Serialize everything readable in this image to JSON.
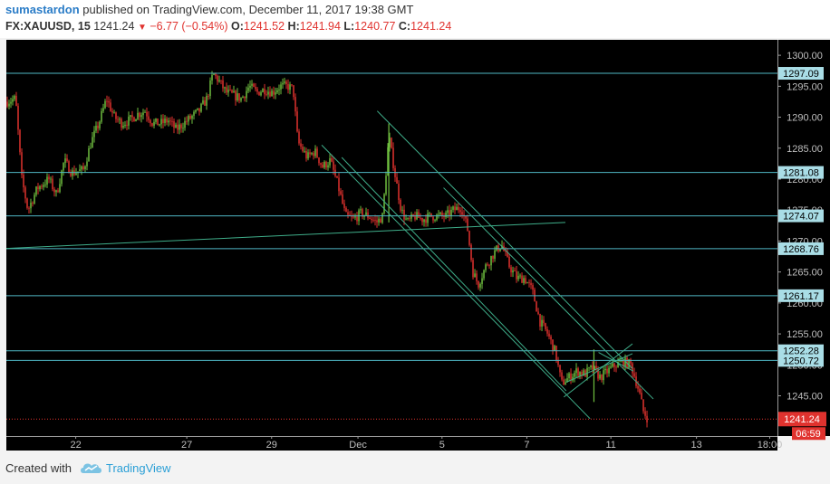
{
  "header": {
    "author": "sumastardon",
    "published": "published on TradingView.com, December 11, 2017 19:38 GMT",
    "symbol": "FX:XAUUSD, 15",
    "last": "1241.24",
    "change": "−6.77 (−0.54%)",
    "open_label": "O:",
    "open": "1241.52",
    "high_label": "H:",
    "high": "1241.94",
    "low_label": "L:",
    "low": "1240.77",
    "close_label": "C:",
    "close": "1241.24"
  },
  "footer": {
    "created": "Created with",
    "brand": "TradingView"
  },
  "colors": {
    "background": "#000000",
    "candle_up": "#6fbf3f",
    "candle_down": "#e0322e",
    "level_line": "#4fb7c4",
    "trend_line": "#3fae8a",
    "label_bg": "#a9dde6",
    "last_price": "#e0322e"
  },
  "chart_data": {
    "type": "candlestick",
    "ylim": [
      1238.5,
      1302.5
    ],
    "y_ticks": [
      1245,
      1250,
      1255,
      1260,
      1265,
      1270,
      1275,
      1280,
      1285,
      1290,
      1295,
      1300
    ],
    "x_ticks": [
      {
        "label": "22",
        "pos": 0.09
      },
      {
        "label": "27",
        "pos": 0.234
      },
      {
        "label": "29",
        "pos": 0.344
      },
      {
        "label": "Dec",
        "pos": 0.456
      },
      {
        "label": "5",
        "pos": 0.565
      },
      {
        "label": "7",
        "pos": 0.675
      },
      {
        "label": "11",
        "pos": 0.784
      },
      {
        "label": "13",
        "pos": 0.895
      },
      {
        "label": "18:00",
        "pos": 0.99
      }
    ],
    "price_path": [
      [
        0.0,
        1292.5
      ],
      [
        0.012,
        1293.0
      ],
      [
        0.02,
        1280.0
      ],
      [
        0.028,
        1275.0
      ],
      [
        0.04,
        1278.5
      ],
      [
        0.055,
        1280.0
      ],
      [
        0.065,
        1277.5
      ],
      [
        0.075,
        1283.0
      ],
      [
        0.085,
        1281.0
      ],
      [
        0.1,
        1281.5
      ],
      [
        0.11,
        1286.0
      ],
      [
        0.12,
        1289.0
      ],
      [
        0.13,
        1293.0
      ],
      [
        0.14,
        1290.0
      ],
      [
        0.15,
        1289.0
      ],
      [
        0.16,
        1289.5
      ],
      [
        0.17,
        1290.5
      ],
      [
        0.18,
        1291.0
      ],
      [
        0.19,
        1289.0
      ],
      [
        0.2,
        1289.0
      ],
      [
        0.21,
        1289.5
      ],
      [
        0.22,
        1288.0
      ],
      [
        0.23,
        1289.0
      ],
      [
        0.24,
        1290.0
      ],
      [
        0.25,
        1291.0
      ],
      [
        0.26,
        1293.0
      ],
      [
        0.268,
        1297.0
      ],
      [
        0.275,
        1296.0
      ],
      [
        0.285,
        1294.0
      ],
      [
        0.295,
        1293.5
      ],
      [
        0.305,
        1293.0
      ],
      [
        0.315,
        1295.0
      ],
      [
        0.325,
        1294.0
      ],
      [
        0.335,
        1294.5
      ],
      [
        0.345,
        1294.0
      ],
      [
        0.355,
        1295.0
      ],
      [
        0.365,
        1295.0
      ],
      [
        0.372,
        1294.5
      ],
      [
        0.378,
        1286.0
      ],
      [
        0.39,
        1283.5
      ],
      [
        0.4,
        1284.5
      ],
      [
        0.41,
        1282.0
      ],
      [
        0.42,
        1283.0
      ],
      [
        0.43,
        1279.0
      ],
      [
        0.44,
        1274.0
      ],
      [
        0.45,
        1273.5
      ],
      [
        0.46,
        1274.5
      ],
      [
        0.47,
        1274.0
      ],
      [
        0.48,
        1273.0
      ],
      [
        0.488,
        1274.0
      ],
      [
        0.496,
        1287.0
      ],
      [
        0.505,
        1280.0
      ],
      [
        0.512,
        1275.0
      ],
      [
        0.52,
        1273.0
      ],
      [
        0.53,
        1274.0
      ],
      [
        0.54,
        1273.5
      ],
      [
        0.55,
        1274.0
      ],
      [
        0.56,
        1274.0
      ],
      [
        0.57,
        1274.0
      ],
      [
        0.58,
        1275.0
      ],
      [
        0.59,
        1275.5
      ],
      [
        0.598,
        1272.0
      ],
      [
        0.605,
        1265.0
      ],
      [
        0.612,
        1263.0
      ],
      [
        0.622,
        1266.0
      ],
      [
        0.632,
        1268.0
      ],
      [
        0.642,
        1269.5
      ],
      [
        0.652,
        1266.0
      ],
      [
        0.662,
        1264.0
      ],
      [
        0.672,
        1264.0
      ],
      [
        0.682,
        1262.0
      ],
      [
        0.692,
        1257.0
      ],
      [
        0.702,
        1255.0
      ],
      [
        0.712,
        1252.0
      ],
      [
        0.72,
        1247.0
      ],
      [
        0.73,
        1248.0
      ],
      [
        0.74,
        1249.0
      ],
      [
        0.75,
        1248.5
      ],
      [
        0.76,
        1249.5
      ],
      [
        0.77,
        1248.0
      ],
      [
        0.78,
        1249.0
      ],
      [
        0.79,
        1250.0
      ],
      [
        0.8,
        1250.5
      ],
      [
        0.81,
        1250.0
      ],
      [
        0.82,
        1246.0
      ],
      [
        0.826,
        1242.5
      ],
      [
        0.832,
        1241.24
      ]
    ],
    "spikes": [
      {
        "pos": 0.496,
        "low": 1273.0,
        "high": 1289.0
      },
      {
        "pos": 0.762,
        "low": 1244.0,
        "high": 1252.5
      }
    ],
    "horizontal_levels": [
      1297.09,
      1281.08,
      1274.07,
      1268.76,
      1261.17,
      1252.28,
      1250.72
    ],
    "last_price": "1241.24",
    "countdown": "06:59",
    "trend_lines": [
      {
        "x1": 0.0,
        "y1": 1268.8,
        "x2": 0.725,
        "y2": 1273.0
      },
      {
        "x1": 0.409,
        "y1": 1285.5,
        "x2": 0.757,
        "y2": 1241.3
      },
      {
        "x1": 0.435,
        "y1": 1283.5,
        "x2": 0.726,
        "y2": 1245.8
      },
      {
        "x1": 0.481,
        "y1": 1291.0,
        "x2": 0.812,
        "y2": 1249.4
      },
      {
        "x1": 0.567,
        "y1": 1278.6,
        "x2": 0.839,
        "y2": 1244.5
      },
      {
        "x1": 0.723,
        "y1": 1244.8,
        "x2": 0.812,
        "y2": 1253.4
      },
      {
        "x1": 0.726,
        "y1": 1247.2,
        "x2": 0.812,
        "y2": 1251.8
      },
      {
        "x1": 0.768,
        "y1": 1252.0,
        "x2": 0.813,
        "y2": 1249.0
      }
    ]
  }
}
